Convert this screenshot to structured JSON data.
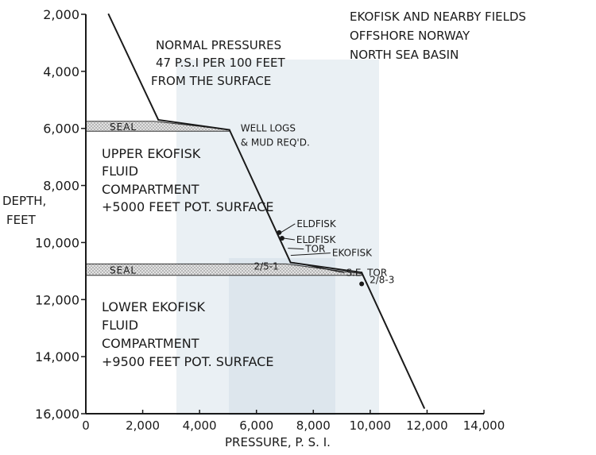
{
  "chart_data": {
    "type": "line",
    "title_lines": [
      "EKOFISK AND NEARBY FIELDS",
      "OFFSHORE NORWAY",
      "NORTH SEA BASIN"
    ],
    "xlabel": "PRESSURE,  P. S. I.",
    "ylabel_lines": [
      "DEPTH,",
      "FEET"
    ],
    "xlim": [
      0,
      14000
    ],
    "ylim": [
      2000,
      16000
    ],
    "y_inverted": true,
    "x_ticks": [
      {
        "value": 0,
        "label": "0"
      },
      {
        "value": 2000,
        "label": "2,000"
      },
      {
        "value": 4000,
        "label": "4,000"
      },
      {
        "value": 6000,
        "label": "6,000"
      },
      {
        "value": 8000,
        "label": "8,000"
      },
      {
        "value": 10000,
        "label": "10,000"
      },
      {
        "value": 12000,
        "label": "12,000"
      },
      {
        "value": 14000,
        "label": "14,000"
      }
    ],
    "y_ticks": [
      {
        "value": 2000,
        "label": "2,000"
      },
      {
        "value": 4000,
        "label": "4,000"
      },
      {
        "value": 6000,
        "label": "6,000"
      },
      {
        "value": 8000,
        "label": "8,000"
      },
      {
        "value": 10000,
        "label": "10,000"
      },
      {
        "value": 12000,
        "label": "12,000"
      },
      {
        "value": 14000,
        "label": "14,000"
      },
      {
        "value": 16000,
        "label": "16,000"
      }
    ],
    "series": [
      {
        "points": [
          {
            "x": 800,
            "y": 2000
          },
          {
            "x": 2550,
            "y": 5700
          },
          {
            "x": 5050,
            "y": 6050
          },
          {
            "x": 7200,
            "y": 10700
          },
          {
            "x": 9700,
            "y": 11050
          },
          {
            "x": 11900,
            "y": 15800
          }
        ]
      }
    ],
    "seals": [
      {
        "label": "SEAL",
        "depth_top": 5750,
        "depth_bottom": 6100,
        "x_end": 5050
      },
      {
        "label": "SEAL",
        "depth_top": 10750,
        "depth_bottom": 11150,
        "x_end": 9700
      }
    ],
    "region_labels": [
      {
        "lines": [
          "NORMAL PRESSURES",
          "47 P.S.I PER 100 FEET",
          "FROM THE SURFACE"
        ]
      },
      {
        "lines": [
          "UPPER EKOFISK",
          "FLUID",
          "COMPARTMENT",
          "+5000 FEET POT. SURFACE"
        ]
      },
      {
        "lines": [
          "LOWER EKOFISK",
          "FLUID",
          "COMPARTMENT",
          "+9500 FEET POT. SURFACE"
        ]
      }
    ],
    "annotations": [
      {
        "label": "WELL LOGS",
        "x": 5050,
        "y": 6050
      },
      {
        "label": "& MUD REQ'D.",
        "x": 5050,
        "y": 6050
      },
      {
        "label": "ELDFISK",
        "x": 6800,
        "y": 9650
      },
      {
        "label": "ELDFISK",
        "x": 6900,
        "y": 9850
      },
      {
        "label": "TOR",
        "x": 7050,
        "y": 10200
      },
      {
        "label": "EKOFISK",
        "x": 7150,
        "y": 10450
      },
      {
        "label": "S.E. TOR",
        "x": 7250,
        "y": 10700
      },
      {
        "label": "2/5-1",
        "x": 7250,
        "y": 10700
      },
      {
        "label": "2/8-3",
        "x": 9700,
        "y": 11450
      }
    ]
  }
}
